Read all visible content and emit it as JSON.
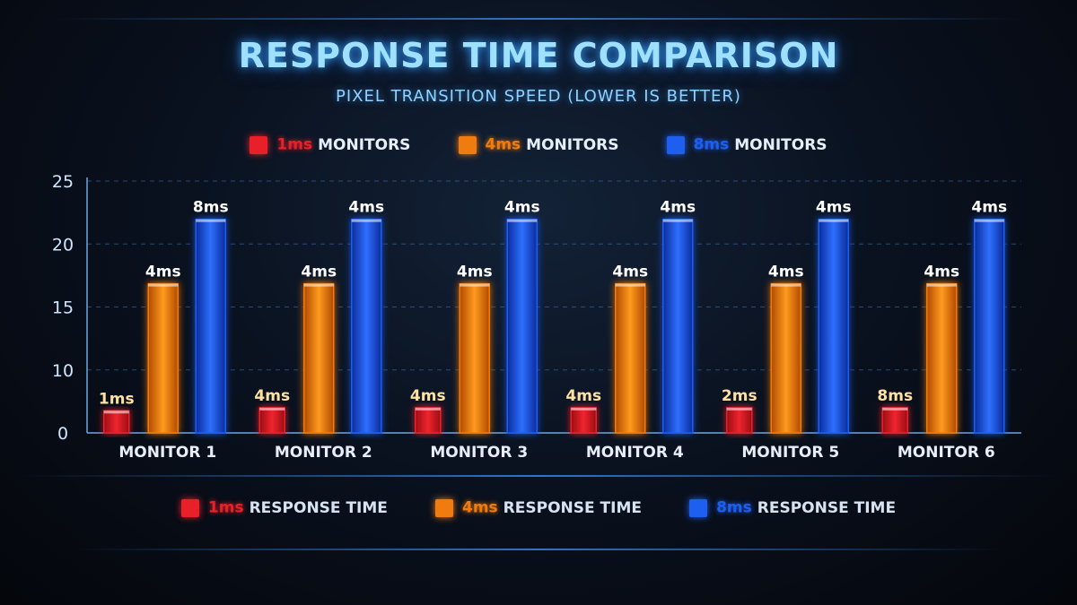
{
  "header": {
    "title": "RESPONSE TIME COMPARISON",
    "subtitle": "PIXEL TRANSITION SPEED (LOWER IS BETTER)"
  },
  "legend_top": [
    {
      "lead": "1ms",
      "rest": "MONITORS",
      "color": "#e8202a"
    },
    {
      "lead": "4ms",
      "rest": "MONITORS",
      "color": "#f07c10"
    },
    {
      "lead": "8ms",
      "rest": "MONITORS",
      "color": "#1f5ff0"
    }
  ],
  "legend_bottom": [
    {
      "lead": "1ms",
      "rest": "RESPONSE TIME",
      "color": "#e8202a"
    },
    {
      "lead": "4ms",
      "rest": "RESPONSE TIME",
      "color": "#f07c10"
    },
    {
      "lead": "8ms",
      "rest": "RESPONSE TIME",
      "color": "#1f5ff0"
    }
  ],
  "chart_data": {
    "type": "bar",
    "categories": [
      "MONITOR 1",
      "MONITOR 2",
      "MONITOR 3",
      "MONITOR 4",
      "MONITOR 5",
      "MONITOR 6"
    ],
    "yticks": [
      "0",
      "10",
      "15",
      "20",
      "25"
    ],
    "ylim": [
      0,
      25
    ],
    "grid": true,
    "series": [
      {
        "color": "#e8202a",
        "label_color": "#ffe0a0",
        "values": [
          2.2,
          2.5,
          2.5,
          2.5,
          2.5,
          2.5
        ],
        "labels": [
          "1ms",
          "4ms",
          "4ms",
          "4ms",
          "2ms",
          "8ms"
        ]
      },
      {
        "color": "#f07c10",
        "label_color": "#ffffff",
        "values": [
          14.8,
          14.8,
          14.8,
          14.8,
          14.8,
          14.8
        ],
        "labels": [
          "4ms",
          "4ms",
          "4ms",
          "4ms",
          "4ms",
          "4ms"
        ]
      },
      {
        "color": "#1f5ff0",
        "label_color": "#ffffff",
        "values": [
          21.2,
          21.2,
          21.2,
          21.2,
          21.2,
          21.2
        ],
        "labels": [
          "8ms",
          "4ms",
          "4ms",
          "4ms",
          "4ms",
          "4ms"
        ]
      }
    ]
  }
}
